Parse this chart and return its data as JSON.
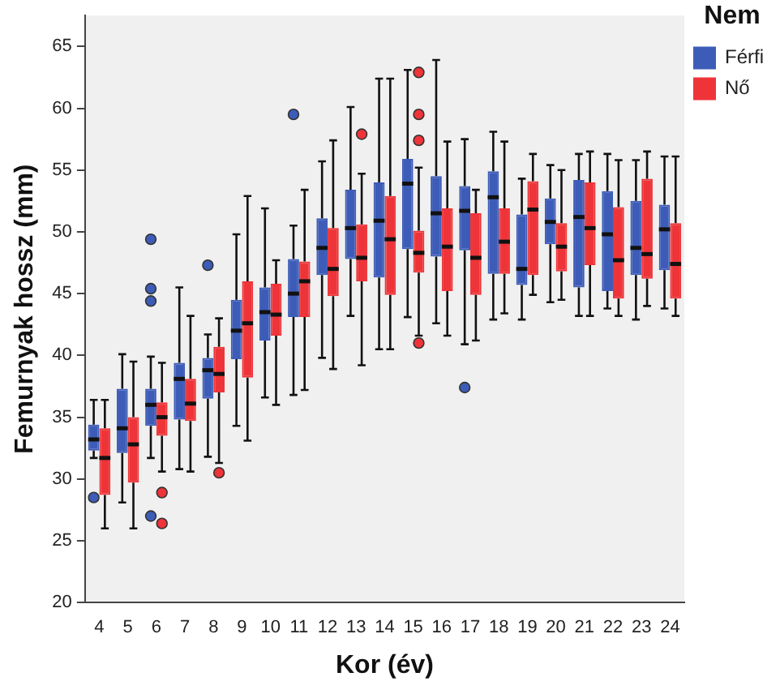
{
  "chart_data": {
    "type": "box",
    "xlabel": "Kor (év)",
    "ylabel": "Femurnyak hossz (mm)",
    "legend_title": "Nem",
    "legend": "top right",
    "grid": false,
    "marker": "circle",
    "categories": [
      "4",
      "5",
      "6",
      "7",
      "8",
      "9",
      "10",
      "11",
      "12",
      "13",
      "14",
      "15",
      "16",
      "17",
      "18",
      "19",
      "20",
      "21",
      "22",
      "23",
      "24"
    ],
    "ylim": [
      20,
      67.5
    ],
    "yticks": [
      20,
      25,
      30,
      35,
      40,
      45,
      50,
      55,
      60,
      65
    ],
    "series": [
      {
        "name": "Férfi",
        "color": "#3d5cb8",
        "boxes": [
          {
            "low": 31.7,
            "q1": 32.3,
            "median": 33.2,
            "q3": 34.4,
            "high": 36.4,
            "outliers": [
              28.5
            ]
          },
          {
            "low": 28.1,
            "q1": 32.1,
            "median": 34.1,
            "q3": 37.3,
            "high": 40.1
          },
          {
            "low": 31.7,
            "q1": 34.3,
            "median": 36.0,
            "q3": 37.3,
            "high": 39.9,
            "outliers": [
              49.4,
              45.4,
              44.4,
              27.0
            ]
          },
          {
            "low": 30.8,
            "q1": 34.8,
            "median": 38.1,
            "q3": 39.4,
            "high": 45.5
          },
          {
            "low": 31.8,
            "q1": 36.5,
            "median": 38.8,
            "q3": 39.8,
            "high": 41.7,
            "outliers": [
              47.3
            ]
          },
          {
            "low": 34.3,
            "q1": 39.7,
            "median": 42.0,
            "q3": 44.5,
            "high": 49.8
          },
          {
            "low": 36.6,
            "q1": 41.2,
            "median": 43.5,
            "q3": 45.5,
            "high": 51.9
          },
          {
            "low": 36.8,
            "q1": 43.1,
            "median": 45.0,
            "q3": 47.8,
            "high": 50.5,
            "outliers": [
              59.5
            ]
          },
          {
            "low": 39.8,
            "q1": 46.5,
            "median": 48.7,
            "q3": 51.1,
            "high": 55.7
          },
          {
            "low": 43.2,
            "q1": 47.8,
            "median": 50.3,
            "q3": 53.4,
            "high": 60.1
          },
          {
            "low": 40.5,
            "q1": 46.3,
            "median": 50.9,
            "q3": 54.0,
            "high": 62.4
          },
          {
            "low": 43.1,
            "q1": 48.6,
            "median": 53.9,
            "q3": 55.9,
            "high": 63.1
          },
          {
            "low": 42.6,
            "q1": 48.0,
            "median": 51.5,
            "q3": 54.5,
            "high": 63.9
          },
          {
            "low": 40.9,
            "q1": 48.5,
            "median": 51.7,
            "q3": 53.7,
            "high": 57.5,
            "outliers": [
              37.4
            ]
          },
          {
            "low": 42.9,
            "q1": 46.6,
            "median": 52.8,
            "q3": 54.9,
            "high": 58.1
          },
          {
            "low": 42.9,
            "q1": 45.7,
            "median": 47.0,
            "q3": 51.4,
            "high": 54.3
          },
          {
            "low": 44.3,
            "q1": 49.0,
            "median": 50.8,
            "q3": 52.7,
            "high": 55.4
          },
          {
            "low": 43.2,
            "q1": 45.5,
            "median": 51.2,
            "q3": 54.2,
            "high": 56.3
          },
          {
            "low": 43.8,
            "q1": 45.2,
            "median": 49.8,
            "q3": 53.3,
            "high": 56.3
          },
          {
            "low": 42.9,
            "q1": 46.5,
            "median": 48.7,
            "q3": 52.5,
            "high": 55.8
          },
          {
            "low": 43.8,
            "q1": 46.9,
            "median": 50.2,
            "q3": 52.2,
            "high": 56.1
          }
        ]
      },
      {
        "name": "Nő",
        "color": "#ee3438",
        "boxes": [
          {
            "low": 26.0,
            "q1": 28.7,
            "median": 31.7,
            "q3": 34.1,
            "high": 36.4
          },
          {
            "low": 26.0,
            "q1": 29.7,
            "median": 32.8,
            "q3": 35.0,
            "high": 39.5
          },
          {
            "low": 30.6,
            "q1": 33.5,
            "median": 35.0,
            "q3": 36.2,
            "high": 39.4,
            "outliers": [
              28.9,
              26.4
            ]
          },
          {
            "low": 30.6,
            "q1": 34.7,
            "median": 36.1,
            "q3": 38.1,
            "high": 43.2
          },
          {
            "low": 31.3,
            "q1": 37.0,
            "median": 38.5,
            "q3": 40.7,
            "high": 43.0,
            "outliers": [
              30.5
            ]
          },
          {
            "low": 33.1,
            "q1": 38.2,
            "median": 42.6,
            "q3": 46.0,
            "high": 52.9
          },
          {
            "low": 36.0,
            "q1": 41.6,
            "median": 43.3,
            "q3": 45.8,
            "high": 47.7
          },
          {
            "low": 37.2,
            "q1": 43.1,
            "median": 46.0,
            "q3": 47.6,
            "high": 53.4
          },
          {
            "low": 38.9,
            "q1": 44.8,
            "median": 47.0,
            "q3": 50.3,
            "high": 57.4
          },
          {
            "low": 39.2,
            "q1": 46.0,
            "median": 47.9,
            "q3": 50.6,
            "high": 54.7,
            "outliers": [
              57.9
            ]
          },
          {
            "low": 40.5,
            "q1": 44.9,
            "median": 49.4,
            "q3": 52.9,
            "high": 62.4
          },
          {
            "low": 41.6,
            "q1": 46.7,
            "median": 48.3,
            "q3": 50.1,
            "high": 55.2,
            "outliers": [
              62.9,
              59.5,
              57.4,
              41.0
            ]
          },
          {
            "low": 41.6,
            "q1": 45.2,
            "median": 48.8,
            "q3": 51.9,
            "high": 57.3
          },
          {
            "low": 41.2,
            "q1": 44.9,
            "median": 47.9,
            "q3": 51.5,
            "high": 53.4
          },
          {
            "low": 43.4,
            "q1": 46.6,
            "median": 49.2,
            "q3": 51.9,
            "high": 57.3
          },
          {
            "low": 44.9,
            "q1": 46.5,
            "median": 51.8,
            "q3": 54.1,
            "high": 56.3
          },
          {
            "low": 44.5,
            "q1": 46.8,
            "median": 48.8,
            "q3": 50.7,
            "high": 55.0
          },
          {
            "low": 43.2,
            "q1": 47.3,
            "median": 50.3,
            "q3": 54.0,
            "high": 56.5
          },
          {
            "low": 43.2,
            "q1": 44.6,
            "median": 47.7,
            "q3": 52.0,
            "high": 55.8
          },
          {
            "low": 44.0,
            "q1": 46.2,
            "median": 48.2,
            "q3": 54.3,
            "high": 56.5
          },
          {
            "low": 43.2,
            "q1": 44.6,
            "median": 47.4,
            "q3": 50.7,
            "high": 56.1
          }
        ]
      }
    ]
  }
}
